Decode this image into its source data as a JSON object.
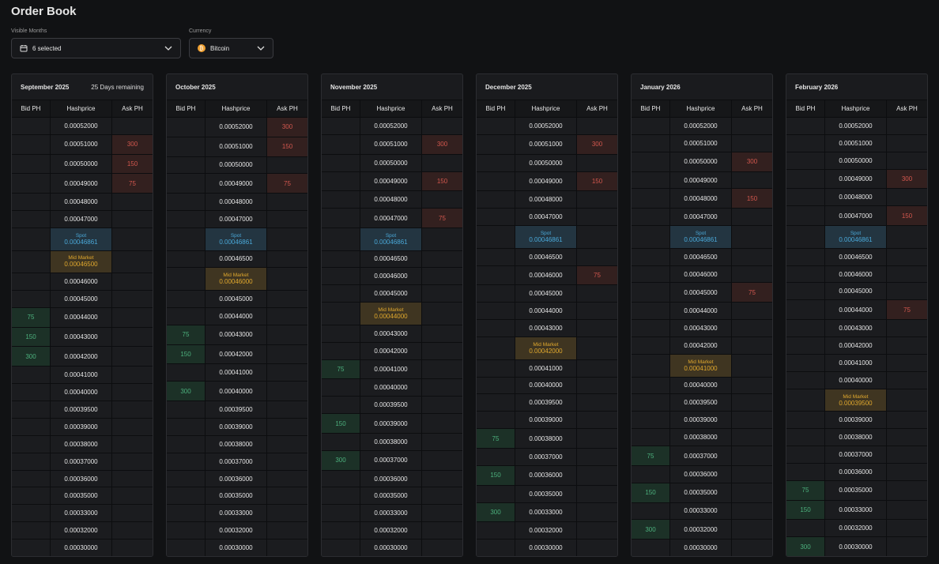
{
  "header": {
    "title": "Order Book"
  },
  "filters": [
    {
      "label": "Visible Months",
      "value": "6 selected"
    },
    {
      "label": "Currency",
      "value": "Bitcoin"
    }
  ],
  "columns": [
    "Bid PH",
    "Hashprice",
    "Ask PH"
  ],
  "months": [
    {
      "title": "September 2025",
      "note": "25 Days remaining",
      "rows": [
        {
          "price": "0.00052000"
        },
        {
          "price": "0.00051000",
          "ask": 300
        },
        {
          "price": "0.00050000",
          "ask": 150
        },
        {
          "price": "0.00049000",
          "ask": 75
        },
        {
          "price": "0.00048000"
        },
        {
          "price": "0.00047000"
        },
        {
          "label": "Spot",
          "price": "0.00046861",
          "color": "#4aa8d8"
        },
        {
          "label": "Mid Market",
          "price": "0.00046500",
          "color": "#e0a82e"
        },
        {
          "price": "0.00046000"
        },
        {
          "price": "0.00045000"
        },
        {
          "price": "0.00044000",
          "bid": 75
        },
        {
          "price": "0.00043000",
          "bid": 150
        },
        {
          "price": "0.00042000",
          "bid": 300
        },
        {
          "price": "0.00041000"
        },
        {
          "price": "0.00040000"
        },
        {
          "price": "0.00039500"
        },
        {
          "price": "0.00039000"
        },
        {
          "price": "0.00038000"
        },
        {
          "price": "0.00037000"
        },
        {
          "price": "0.00036000"
        },
        {
          "price": "0.00035000"
        },
        {
          "price": "0.00033000"
        },
        {
          "price": "0.00032000"
        },
        {
          "price": "0.00030000"
        }
      ]
    },
    {
      "title": "October 2025",
      "rows": [
        {
          "price": "0.00052000",
          "ask": 300
        },
        {
          "price": "0.00051000",
          "ask": 150
        },
        {
          "price": "0.00050000"
        },
        {
          "price": "0.00049000",
          "ask": 75
        },
        {
          "price": "0.00048000"
        },
        {
          "price": "0.00047000"
        },
        {
          "label": "Spot",
          "price": "0.00046861",
          "color": "#4aa8d8"
        },
        {
          "price": "0.00046500"
        },
        {
          "label": "Mid Market",
          "price": "0.00046000",
          "color": "#e0a82e"
        },
        {
          "price": "0.00045000"
        },
        {
          "price": "0.00044000"
        },
        {
          "price": "0.00043000",
          "bid": 75
        },
        {
          "price": "0.00042000",
          "bid": 150
        },
        {
          "price": "0.00041000"
        },
        {
          "price": "0.00040000",
          "bid": 300
        },
        {
          "price": "0.00039500"
        },
        {
          "price": "0.00039000"
        },
        {
          "price": "0.00038000"
        },
        {
          "price": "0.00037000"
        },
        {
          "price": "0.00036000"
        },
        {
          "price": "0.00035000"
        },
        {
          "price": "0.00033000"
        },
        {
          "price": "0.00032000"
        },
        {
          "price": "0.00030000"
        }
      ]
    },
    {
      "title": "November 2025",
      "rows": [
        {
          "price": "0.00052000"
        },
        {
          "price": "0.00051000",
          "ask": 300
        },
        {
          "price": "0.00050000"
        },
        {
          "price": "0.00049000",
          "ask": 150
        },
        {
          "price": "0.00048000"
        },
        {
          "price": "0.00047000",
          "ask": 75
        },
        {
          "label": "Spot",
          "price": "0.00046861",
          "color": "#4aa8d8"
        },
        {
          "price": "0.00046500"
        },
        {
          "price": "0.00046000"
        },
        {
          "price": "0.00045000"
        },
        {
          "label": "Mid Market",
          "price": "0.00044000",
          "color": "#e0a82e"
        },
        {
          "price": "0.00043000"
        },
        {
          "price": "0.00042000"
        },
        {
          "price": "0.00041000",
          "bid": 75
        },
        {
          "price": "0.00040000"
        },
        {
          "price": "0.00039500"
        },
        {
          "price": "0.00039000",
          "bid": 150
        },
        {
          "price": "0.00038000"
        },
        {
          "price": "0.00037000",
          "bid": 300
        },
        {
          "price": "0.00036000"
        },
        {
          "price": "0.00035000"
        },
        {
          "price": "0.00033000"
        },
        {
          "price": "0.00032000"
        },
        {
          "price": "0.00030000"
        }
      ]
    },
    {
      "title": "December 2025",
      "rows": [
        {
          "price": "0.00052000"
        },
        {
          "price": "0.00051000",
          "ask": 300
        },
        {
          "price": "0.00050000"
        },
        {
          "price": "0.00049000",
          "ask": 150
        },
        {
          "price": "0.00048000"
        },
        {
          "price": "0.00047000"
        },
        {
          "label": "Spot",
          "price": "0.00046861",
          "color": "#4aa8d8"
        },
        {
          "price": "0.00046500"
        },
        {
          "price": "0.00046000",
          "ask": 75
        },
        {
          "price": "0.00045000"
        },
        {
          "price": "0.00044000"
        },
        {
          "price": "0.00043000"
        },
        {
          "label": "Mid Market",
          "price": "0.00042000",
          "color": "#e0a82e"
        },
        {
          "price": "0.00041000"
        },
        {
          "price": "0.00040000"
        },
        {
          "price": "0.00039500"
        },
        {
          "price": "0.00039000"
        },
        {
          "price": "0.00038000",
          "bid": 75
        },
        {
          "price": "0.00037000"
        },
        {
          "price": "0.00036000",
          "bid": 150
        },
        {
          "price": "0.00035000"
        },
        {
          "price": "0.00033000",
          "bid": 300
        },
        {
          "price": "0.00032000"
        },
        {
          "price": "0.00030000"
        }
      ]
    },
    {
      "title": "January 2026",
      "rows": [
        {
          "price": "0.00052000"
        },
        {
          "price": "0.00051000"
        },
        {
          "price": "0.00050000",
          "ask": 300
        },
        {
          "price": "0.00049000"
        },
        {
          "price": "0.00048000",
          "ask": 150
        },
        {
          "price": "0.00047000"
        },
        {
          "label": "Spot",
          "price": "0.00046861",
          "color": "#4aa8d8"
        },
        {
          "price": "0.00046500"
        },
        {
          "price": "0.00046000"
        },
        {
          "price": "0.00045000",
          "ask": 75
        },
        {
          "price": "0.00044000"
        },
        {
          "price": "0.00043000"
        },
        {
          "price": "0.00042000"
        },
        {
          "label": "Mid Market",
          "price": "0.00041000",
          "color": "#e0a82e"
        },
        {
          "price": "0.00040000"
        },
        {
          "price": "0.00039500"
        },
        {
          "price": "0.00039000"
        },
        {
          "price": "0.00038000"
        },
        {
          "price": "0.00037000",
          "bid": 75
        },
        {
          "price": "0.00036000"
        },
        {
          "price": "0.00035000",
          "bid": 150
        },
        {
          "price": "0.00033000"
        },
        {
          "price": "0.00032000",
          "bid": 300
        },
        {
          "price": "0.00030000"
        }
      ]
    },
    {
      "title": "February 2026",
      "rows": [
        {
          "price": "0.00052000"
        },
        {
          "price": "0.00051000"
        },
        {
          "price": "0.00050000"
        },
        {
          "price": "0.00049000",
          "ask": 300
        },
        {
          "price": "0.00048000"
        },
        {
          "price": "0.00047000",
          "ask": 150
        },
        {
          "label": "Spot",
          "price": "0.00046861",
          "color": "#4aa8d8"
        },
        {
          "price": "0.00046500"
        },
        {
          "price": "0.00046000"
        },
        {
          "price": "0.00045000"
        },
        {
          "price": "0.00044000",
          "ask": 75
        },
        {
          "price": "0.00043000"
        },
        {
          "price": "0.00042000"
        },
        {
          "price": "0.00041000"
        },
        {
          "price": "0.00040000"
        },
        {
          "label": "Mid Market",
          "price": "0.00039500",
          "color": "#e0a82e"
        },
        {
          "price": "0.00039000"
        },
        {
          "price": "0.00038000"
        },
        {
          "price": "0.00037000"
        },
        {
          "price": "0.00036000"
        },
        {
          "price": "0.00035000",
          "bid": 75
        },
        {
          "price": "0.00033000",
          "bid": 150
        },
        {
          "price": "0.00032000"
        },
        {
          "price": "0.00030000",
          "bid": 300
        }
      ]
    }
  ]
}
